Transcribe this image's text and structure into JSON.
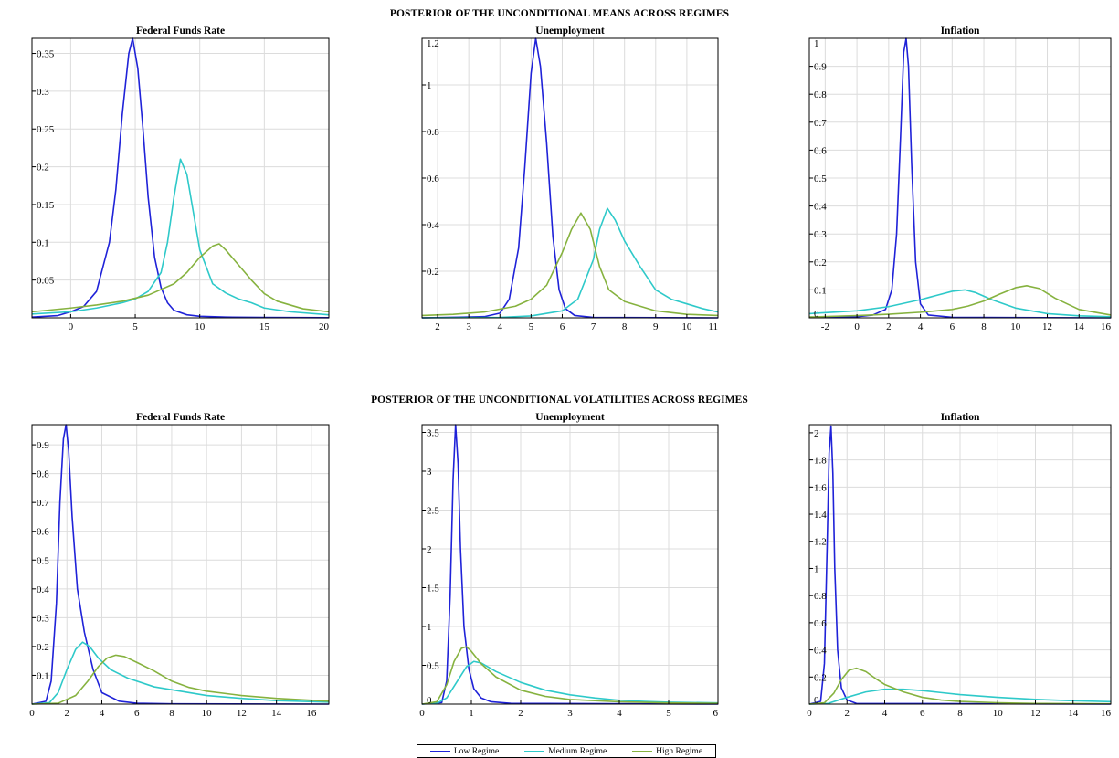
{
  "colors": {
    "low": "#1f22d8",
    "medium": "#2ec9c9",
    "high": "#86b23f"
  },
  "legend": {
    "low": "Low Regime",
    "medium": "Medium Regime",
    "high": "High Regime"
  },
  "group_titles": {
    "means": "POSTERIOR OF THE UNCONDITIONAL MEANS ACROSS REGIMES",
    "vols": "POSTERIOR OF THE UNCONDITIONAL VOLATILITIES ACROSS REGIMES"
  },
  "chart_data": [
    {
      "id": "mean-ffr",
      "type": "line",
      "title": "Federal Funds Rate",
      "xlim": [
        -3,
        20
      ],
      "ylim": [
        0,
        0.37
      ],
      "xticks": [
        0,
        5,
        10,
        15,
        20
      ],
      "yticks": [
        0.05,
        0.1,
        0.15,
        0.2,
        0.25,
        0.3,
        0.35
      ],
      "grid": true,
      "series": [
        {
          "name": "Low Regime",
          "key": "low",
          "x": [
            -3,
            -1,
            0,
            1,
            2,
            3,
            3.5,
            4,
            4.5,
            4.8,
            5.2,
            5.6,
            6,
            6.5,
            7,
            7.5,
            8,
            9,
            10,
            12,
            15,
            20
          ],
          "y": [
            0.001,
            0.003,
            0.008,
            0.015,
            0.035,
            0.1,
            0.17,
            0.27,
            0.35,
            0.37,
            0.33,
            0.25,
            0.16,
            0.08,
            0.04,
            0.02,
            0.01,
            0.004,
            0.002,
            0.001,
            0.0005,
            0.0002
          ]
        },
        {
          "name": "Medium Regime",
          "key": "medium",
          "x": [
            -3,
            0,
            2,
            4,
            5,
            6,
            7,
            7.5,
            8,
            8.5,
            9,
            9.5,
            10,
            11,
            12,
            13,
            14,
            15,
            17,
            20
          ],
          "y": [
            0.005,
            0.008,
            0.013,
            0.02,
            0.025,
            0.035,
            0.06,
            0.1,
            0.16,
            0.21,
            0.19,
            0.14,
            0.09,
            0.045,
            0.033,
            0.025,
            0.02,
            0.013,
            0.008,
            0.004
          ]
        },
        {
          "name": "High Regime",
          "key": "high",
          "x": [
            -3,
            0,
            2,
            4,
            6,
            8,
            9,
            10,
            11,
            11.5,
            12,
            13,
            14,
            15,
            16,
            18,
            20
          ],
          "y": [
            0.008,
            0.013,
            0.017,
            0.022,
            0.03,
            0.045,
            0.06,
            0.08,
            0.095,
            0.098,
            0.09,
            0.07,
            0.05,
            0.032,
            0.022,
            0.012,
            0.008
          ]
        }
      ]
    },
    {
      "id": "mean-unemp",
      "type": "line",
      "title": "Unemployment",
      "xlim": [
        1.5,
        11
      ],
      "ylim": [
        0,
        1.2
      ],
      "xticks": [
        2,
        3,
        4,
        5,
        6,
        7,
        8,
        9,
        10,
        11
      ],
      "yticks": [
        0.2,
        0.4,
        0.6,
        0.8,
        1,
        1.2
      ],
      "grid": true,
      "series": [
        {
          "name": "Low Regime",
          "key": "low",
          "x": [
            1.5,
            3.5,
            4,
            4.3,
            4.6,
            4.8,
            5,
            5.15,
            5.3,
            5.5,
            5.7,
            5.9,
            6.1,
            6.4,
            7,
            11
          ],
          "y": [
            0,
            0.005,
            0.02,
            0.08,
            0.3,
            0.65,
            1.05,
            1.2,
            1.08,
            0.75,
            0.35,
            0.12,
            0.04,
            0.01,
            0.002,
            0
          ]
        },
        {
          "name": "Medium Regime",
          "key": "medium",
          "x": [
            1.5,
            4,
            5,
            6,
            6.5,
            7,
            7.2,
            7.45,
            7.7,
            8,
            8.5,
            9,
            9.5,
            10,
            10.5,
            11
          ],
          "y": [
            0,
            0.002,
            0.008,
            0.03,
            0.08,
            0.25,
            0.38,
            0.47,
            0.42,
            0.33,
            0.22,
            0.12,
            0.08,
            0.06,
            0.04,
            0.025
          ]
        },
        {
          "name": "High Regime",
          "key": "high",
          "x": [
            1.5,
            2.5,
            3.5,
            4.5,
            5,
            5.5,
            6,
            6.3,
            6.6,
            6.9,
            7.2,
            7.5,
            8,
            9,
            10,
            11
          ],
          "y": [
            0.01,
            0.015,
            0.025,
            0.05,
            0.08,
            0.14,
            0.28,
            0.38,
            0.45,
            0.38,
            0.22,
            0.12,
            0.07,
            0.03,
            0.015,
            0.01
          ]
        }
      ]
    },
    {
      "id": "mean-infl",
      "type": "line",
      "title": "Inflation",
      "xlim": [
        -3,
        16
      ],
      "ylim": [
        0,
        1
      ],
      "xticks": [
        -2,
        0,
        2,
        4,
        6,
        8,
        10,
        12,
        14,
        16
      ],
      "yticks": [
        0,
        0.1,
        0.2,
        0.3,
        0.4,
        0.5,
        0.6,
        0.7,
        0.8,
        0.9,
        1
      ],
      "grid": true,
      "series": [
        {
          "name": "Low Regime",
          "key": "low",
          "x": [
            -3,
            0,
            1,
            1.8,
            2.2,
            2.5,
            2.75,
            2.95,
            3.1,
            3.25,
            3.45,
            3.7,
            4,
            4.5,
            6,
            16
          ],
          "y": [
            0.002,
            0.004,
            0.01,
            0.03,
            0.1,
            0.3,
            0.65,
            0.95,
            1,
            0.9,
            0.55,
            0.2,
            0.05,
            0.01,
            0.002,
            0
          ]
        },
        {
          "name": "Medium Regime",
          "key": "medium",
          "x": [
            -3,
            0,
            2,
            4,
            5,
            6,
            6.8,
            7.5,
            8.5,
            10,
            12,
            14,
            16
          ],
          "y": [
            0.015,
            0.025,
            0.04,
            0.065,
            0.08,
            0.095,
            0.1,
            0.09,
            0.065,
            0.035,
            0.015,
            0.007,
            0.004
          ]
        },
        {
          "name": "High Regime",
          "key": "high",
          "x": [
            -3,
            0,
            2,
            4,
            6,
            7,
            8,
            9,
            10,
            10.7,
            11.5,
            12.5,
            14,
            16
          ],
          "y": [
            0.003,
            0.008,
            0.013,
            0.02,
            0.03,
            0.042,
            0.06,
            0.085,
            0.108,
            0.115,
            0.105,
            0.07,
            0.03,
            0.01
          ]
        }
      ]
    },
    {
      "id": "vol-ffr",
      "type": "line",
      "title": "Federal Funds Rate",
      "xlim": [
        0,
        17
      ],
      "ylim": [
        0,
        0.97
      ],
      "xticks": [
        0,
        2,
        4,
        6,
        8,
        10,
        12,
        14,
        16
      ],
      "yticks": [
        0.1,
        0.2,
        0.3,
        0.4,
        0.5,
        0.6,
        0.7,
        0.8,
        0.9
      ],
      "grid": true,
      "series": [
        {
          "name": "Low Regime",
          "key": "low",
          "x": [
            0,
            0.8,
            1.1,
            1.4,
            1.6,
            1.8,
            1.95,
            2.1,
            2.3,
            2.6,
            3,
            3.5,
            4,
            5,
            6,
            8,
            17
          ],
          "y": [
            0,
            0.01,
            0.08,
            0.35,
            0.7,
            0.92,
            0.97,
            0.88,
            0.65,
            0.4,
            0.25,
            0.12,
            0.04,
            0.01,
            0.003,
            0.001,
            0
          ]
        },
        {
          "name": "Medium Regime",
          "key": "medium",
          "x": [
            0,
            1,
            1.5,
            2,
            2.5,
            2.9,
            3.3,
            3.8,
            4.5,
            5.5,
            7,
            8.5,
            10,
            12,
            14,
            17
          ],
          "y": [
            0,
            0.005,
            0.04,
            0.12,
            0.19,
            0.215,
            0.2,
            0.16,
            0.12,
            0.09,
            0.06,
            0.045,
            0.03,
            0.02,
            0.012,
            0.007
          ]
        },
        {
          "name": "High Regime",
          "key": "high",
          "x": [
            0,
            1.5,
            2.5,
            3.2,
            3.8,
            4.3,
            4.8,
            5.3,
            6,
            7,
            8,
            9,
            10,
            12,
            14,
            17
          ],
          "y": [
            0,
            0.003,
            0.03,
            0.08,
            0.13,
            0.16,
            0.17,
            0.165,
            0.145,
            0.115,
            0.08,
            0.058,
            0.045,
            0.03,
            0.02,
            0.01
          ]
        }
      ]
    },
    {
      "id": "vol-unemp",
      "type": "line",
      "title": "Unemployment",
      "xlim": [
        0,
        6
      ],
      "ylim": [
        0,
        3.6
      ],
      "xticks": [
        0,
        1,
        2,
        3,
        4,
        5,
        6
      ],
      "yticks": [
        0,
        0.5,
        1,
        1.5,
        2,
        2.5,
        3,
        3.5
      ],
      "grid": true,
      "series": [
        {
          "name": "Low Regime",
          "key": "low",
          "x": [
            0,
            0.4,
            0.5,
            0.57,
            0.63,
            0.68,
            0.73,
            0.78,
            0.85,
            0.95,
            1.05,
            1.2,
            1.4,
            1.8,
            6
          ],
          "y": [
            0,
            0.02,
            0.3,
            1.4,
            2.9,
            3.6,
            3.1,
            2,
            1,
            0.45,
            0.2,
            0.08,
            0.03,
            0.01,
            0
          ]
        },
        {
          "name": "Medium Regime",
          "key": "medium",
          "x": [
            0,
            0.3,
            0.5,
            0.7,
            0.9,
            1.05,
            1.2,
            1.5,
            2,
            2.5,
            3,
            3.5,
            4,
            4.5,
            5,
            6
          ],
          "y": [
            0,
            0.01,
            0.08,
            0.28,
            0.48,
            0.55,
            0.53,
            0.42,
            0.28,
            0.18,
            0.12,
            0.08,
            0.05,
            0.035,
            0.025,
            0.015
          ]
        },
        {
          "name": "High Regime",
          "key": "high",
          "x": [
            0,
            0.3,
            0.5,
            0.65,
            0.8,
            0.9,
            1,
            1.2,
            1.5,
            2,
            2.5,
            3,
            4,
            5,
            6
          ],
          "y": [
            0,
            0.03,
            0.25,
            0.55,
            0.72,
            0.74,
            0.68,
            0.52,
            0.35,
            0.18,
            0.1,
            0.06,
            0.03,
            0.015,
            0.01
          ]
        }
      ]
    },
    {
      "id": "vol-infl",
      "type": "line",
      "title": "Inflation",
      "xlim": [
        0,
        16
      ],
      "ylim": [
        0,
        2.06
      ],
      "xticks": [
        0,
        2,
        4,
        6,
        8,
        10,
        12,
        14,
        16
      ],
      "yticks": [
        0,
        0.2,
        0.4,
        0.6,
        0.8,
        1,
        1.2,
        1.4,
        1.6,
        1.8,
        2
      ],
      "grid": true,
      "series": [
        {
          "name": "Low Regime",
          "key": "low",
          "x": [
            0,
            0.6,
            0.8,
            0.95,
            1.05,
            1.15,
            1.25,
            1.35,
            1.5,
            1.7,
            2,
            2.5,
            16
          ],
          "y": [
            0,
            0.02,
            0.3,
            1.2,
            1.85,
            2.05,
            1.7,
            1,
            0.4,
            0.12,
            0.03,
            0.005,
            0
          ]
        },
        {
          "name": "Medium Regime",
          "key": "medium",
          "x": [
            0,
            1,
            2,
            3,
            4,
            5,
            6,
            7,
            8,
            10,
            12,
            14,
            16
          ],
          "y": [
            0,
            0.005,
            0.05,
            0.09,
            0.11,
            0.11,
            0.1,
            0.085,
            0.07,
            0.05,
            0.035,
            0.025,
            0.018
          ]
        },
        {
          "name": "High Regime",
          "key": "high",
          "x": [
            0,
            0.8,
            1.3,
            1.7,
            2.1,
            2.5,
            3,
            3.5,
            4,
            5,
            6,
            7,
            8,
            10,
            12,
            16
          ],
          "y": [
            0,
            0.01,
            0.08,
            0.18,
            0.25,
            0.265,
            0.24,
            0.19,
            0.145,
            0.09,
            0.05,
            0.03,
            0.02,
            0.01,
            0.005,
            0.002
          ]
        }
      ]
    }
  ]
}
